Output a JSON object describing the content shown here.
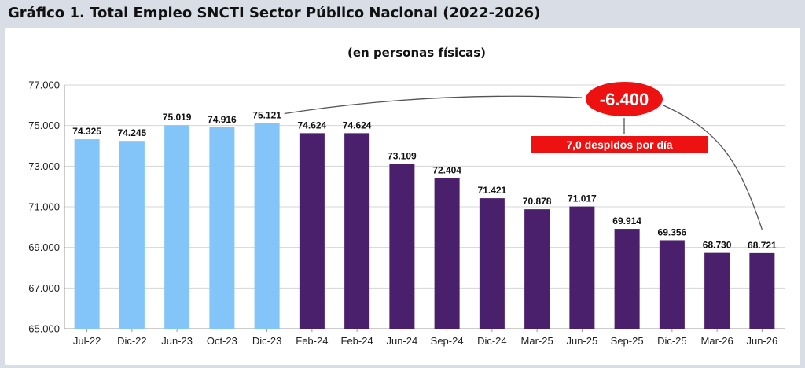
{
  "header": {
    "title": "Gráfico 1. Total Empleo SNCTI Sector Público Nacional (2022-2026)"
  },
  "chart_data": {
    "type": "bar",
    "title": "Gráfico 1. Total Empleo SNCTI Sector Público Nacional (2022-2026)",
    "subtitle": "(en personas físicas)",
    "xlabel": "",
    "ylabel": "",
    "ylim": [
      65000,
      77000
    ],
    "yticks": [
      65000,
      67000,
      69000,
      71000,
      73000,
      75000,
      77000
    ],
    "ytick_labels": [
      "65.000",
      "67.000",
      "69.000",
      "71.000",
      "73.000",
      "75.000",
      "77.000"
    ],
    "grid": true,
    "categories": [
      "Jul-22",
      "Dic-22",
      "Jun-23",
      "Oct-23",
      "Dic-23",
      "Feb-24",
      "Feb-24",
      "Jun-24",
      "Sep-24",
      "Dic-24",
      "Mar-25",
      "Jun-25",
      "Sep-25",
      "Dic-25",
      "Mar-26",
      "Jun-26"
    ],
    "values": [
      74325,
      74245,
      75019,
      74916,
      75121,
      74624,
      74624,
      73109,
      72404,
      71421,
      70878,
      71017,
      69914,
      69356,
      68730,
      68721
    ],
    "value_labels": [
      "74.325",
      "74.245",
      "75.019",
      "74.916",
      "75.121",
      "74.624",
      "74.624",
      "73.109",
      "72.404",
      "71.421",
      "70.878",
      "71.017",
      "69.914",
      "69.356",
      "68.730",
      "68.721"
    ],
    "bar_colors": [
      "#83c5f8",
      "#83c5f8",
      "#83c5f8",
      "#83c5f8",
      "#83c5f8",
      "#4a1f6b",
      "#4a1f6b",
      "#4a1f6b",
      "#4a1f6b",
      "#4a1f6b",
      "#4a1f6b",
      "#4a1f6b",
      "#4a1f6b",
      "#4a1f6b",
      "#4a1f6b",
      "#4a1f6b"
    ],
    "annotations": {
      "difference": "-6.400",
      "rate": "7,0 despidos por día",
      "accent_color": "#ee1111"
    }
  }
}
